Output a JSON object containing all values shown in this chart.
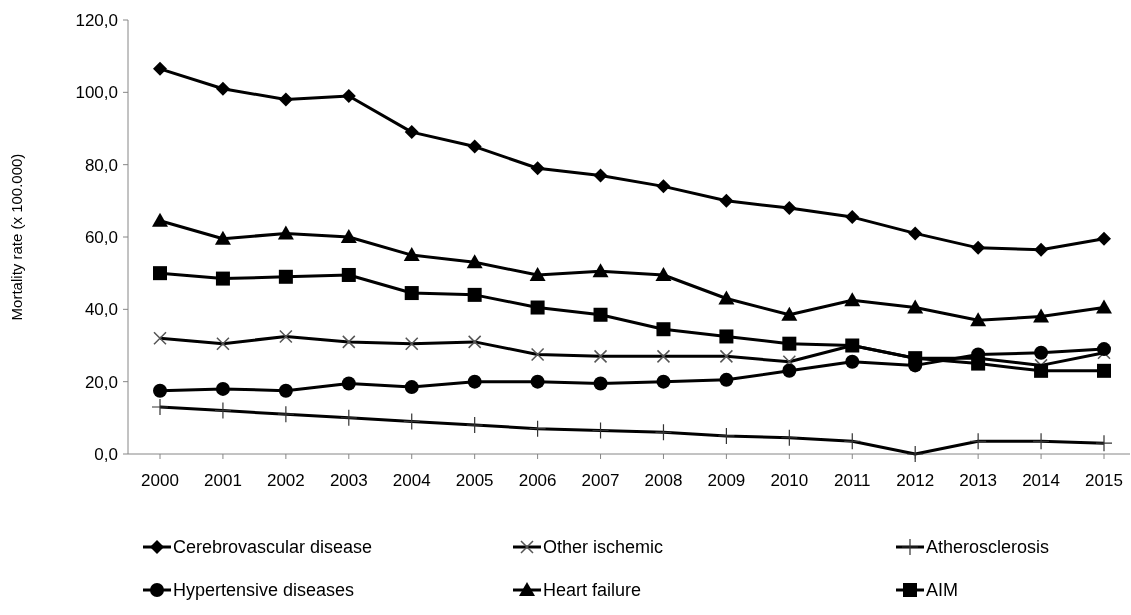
{
  "chart_data": {
    "type": "line",
    "ylabel": "Mortality rate (x 100.000)",
    "categories": [
      "2000",
      "2001",
      "2002",
      "2003",
      "2004",
      "2005",
      "2006",
      "2007",
      "2008",
      "2009",
      "2010",
      "2011",
      "2012",
      "2013",
      "2014",
      "2015"
    ],
    "ylim": [
      0,
      120
    ],
    "yticks": [
      {
        "value": 0,
        "label": "0,0"
      },
      {
        "value": 20,
        "label": "20,0"
      },
      {
        "value": 40,
        "label": "40,0"
      },
      {
        "value": 60,
        "label": "60,0"
      },
      {
        "value": 80,
        "label": "80,0"
      },
      {
        "value": 100,
        "label": "100,0"
      },
      {
        "value": 120,
        "label": "120,0"
      }
    ],
    "grid": false,
    "legend": "bottom",
    "line_style": "solid",
    "series": [
      {
        "name": "Cerebrovascular disease",
        "color": "#000000",
        "marker": "diamond",
        "values": [
          106.5,
          101,
          98,
          99,
          89,
          85,
          79,
          77,
          74,
          70,
          68,
          65.5,
          61,
          57,
          56.5,
          59.5
        ]
      },
      {
        "name": "Other ischemic",
        "color": "#000000",
        "marker": "x",
        "values": [
          32,
          30.5,
          32.5,
          31,
          30.5,
          31,
          27.5,
          27,
          27,
          27,
          25.5,
          30,
          26.5,
          26.5,
          24.5,
          28
        ]
      },
      {
        "name": "Atherosclerosis",
        "color": "#000000",
        "marker": "cross",
        "values": [
          13,
          12,
          11,
          10,
          9,
          8,
          7,
          6.5,
          6,
          5,
          4.5,
          3.5,
          0,
          3.5,
          3.5,
          3
        ]
      },
      {
        "name": "Hypertensive diseases",
        "color": "#000000",
        "marker": "circle",
        "values": [
          17.5,
          18,
          17.5,
          19.5,
          18.5,
          20,
          20,
          19.5,
          20,
          20.5,
          23,
          25.5,
          24.5,
          27.5,
          28,
          29
        ]
      },
      {
        "name": "Heart failure",
        "color": "#000000",
        "marker": "triangle",
        "values": [
          64.5,
          59.5,
          61,
          60,
          55,
          53,
          49.5,
          50.5,
          49.5,
          43,
          38.5,
          42.5,
          40.5,
          37,
          38,
          40.5
        ]
      },
      {
        "name": "AIM",
        "color": "#000000",
        "marker": "square",
        "values": [
          50,
          48.5,
          49,
          49.5,
          44.5,
          44,
          40.5,
          38.5,
          34.5,
          32.5,
          30.5,
          30,
          26.5,
          25,
          23,
          23
        ]
      }
    ]
  }
}
